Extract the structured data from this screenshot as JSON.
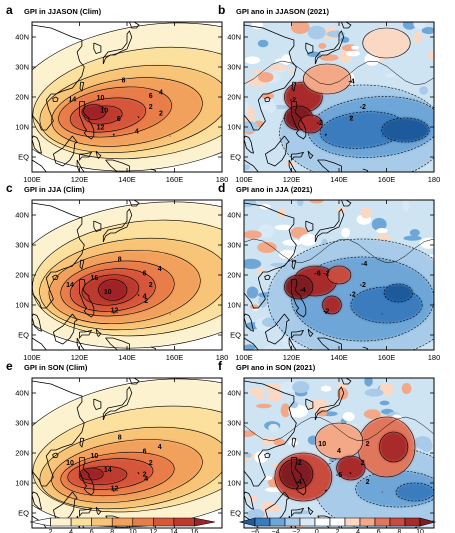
{
  "chart_data": {
    "type": "heatmap",
    "panels": [
      {
        "letter": "a",
        "title": "GPI in JJASON (Clim)",
        "kind": "clim",
        "contour_labels": [
          "2",
          "4",
          "6",
          "8",
          "10",
          "14",
          "10",
          "12",
          "6",
          "4",
          "2"
        ]
      },
      {
        "letter": "b",
        "title": "GPI ano in JJASON (2021)",
        "kind": "ano",
        "contour_labels": [
          "-2",
          "-4",
          "-2",
          "-2",
          "2"
        ]
      },
      {
        "letter": "c",
        "title": "GPI in JJA (Clim)",
        "kind": "clim",
        "contour_labels": [
          "2",
          "4",
          "6",
          "8",
          "16",
          "14",
          "10",
          "12",
          "4",
          "2"
        ]
      },
      {
        "letter": "d",
        "title": "GPI ano in JJA (2021)",
        "kind": "ano",
        "contour_labels": [
          "-2",
          "-4",
          "-2",
          "-6",
          "-4",
          "-2",
          "2"
        ]
      },
      {
        "letter": "e",
        "title": "GPI in SON (Clim)",
        "kind": "clim",
        "contour_labels": [
          "2",
          "4",
          "6",
          "8",
          "10",
          "10",
          "14",
          "12",
          "2",
          "4"
        ]
      },
      {
        "letter": "f",
        "title": "GPI ano in SON (2021)",
        "kind": "ano",
        "contour_labels": [
          "2",
          "2",
          "4",
          "10",
          "-2",
          "-4",
          "-6",
          "2"
        ]
      }
    ],
    "x_ticks": [
      "100E",
      "120E",
      "140E",
      "160E",
      "180"
    ],
    "y_ticks": [
      "40N",
      "30N",
      "20N",
      "10N",
      "EQ"
    ],
    "xlim": [
      100,
      180
    ],
    "ylim": [
      -5,
      45
    ],
    "colorbars": [
      {
        "ticks": [
          "2",
          "4",
          "6",
          "8",
          "10",
          "12",
          "14",
          "16"
        ],
        "colors": [
          "#ffffff",
          "#fdf2cf",
          "#fbe09e",
          "#f8c477",
          "#f2a15c",
          "#e87d48",
          "#d6573a",
          "#bd3a2e",
          "#9e2326"
        ]
      },
      {
        "ticks": [
          "−6",
          "−4",
          "−2",
          "0",
          "2",
          "4",
          "6",
          "8",
          "10"
        ],
        "colors": [
          "#1f5a9c",
          "#3a7bbf",
          "#6ea6d7",
          "#a7cbe8",
          "#d9e9f5",
          "#ffffff",
          "#ffffff",
          "#fbd8c4",
          "#f3a888",
          "#e0765c",
          "#c84b3e",
          "#a82b2c",
          "#7f1b23"
        ]
      }
    ]
  }
}
